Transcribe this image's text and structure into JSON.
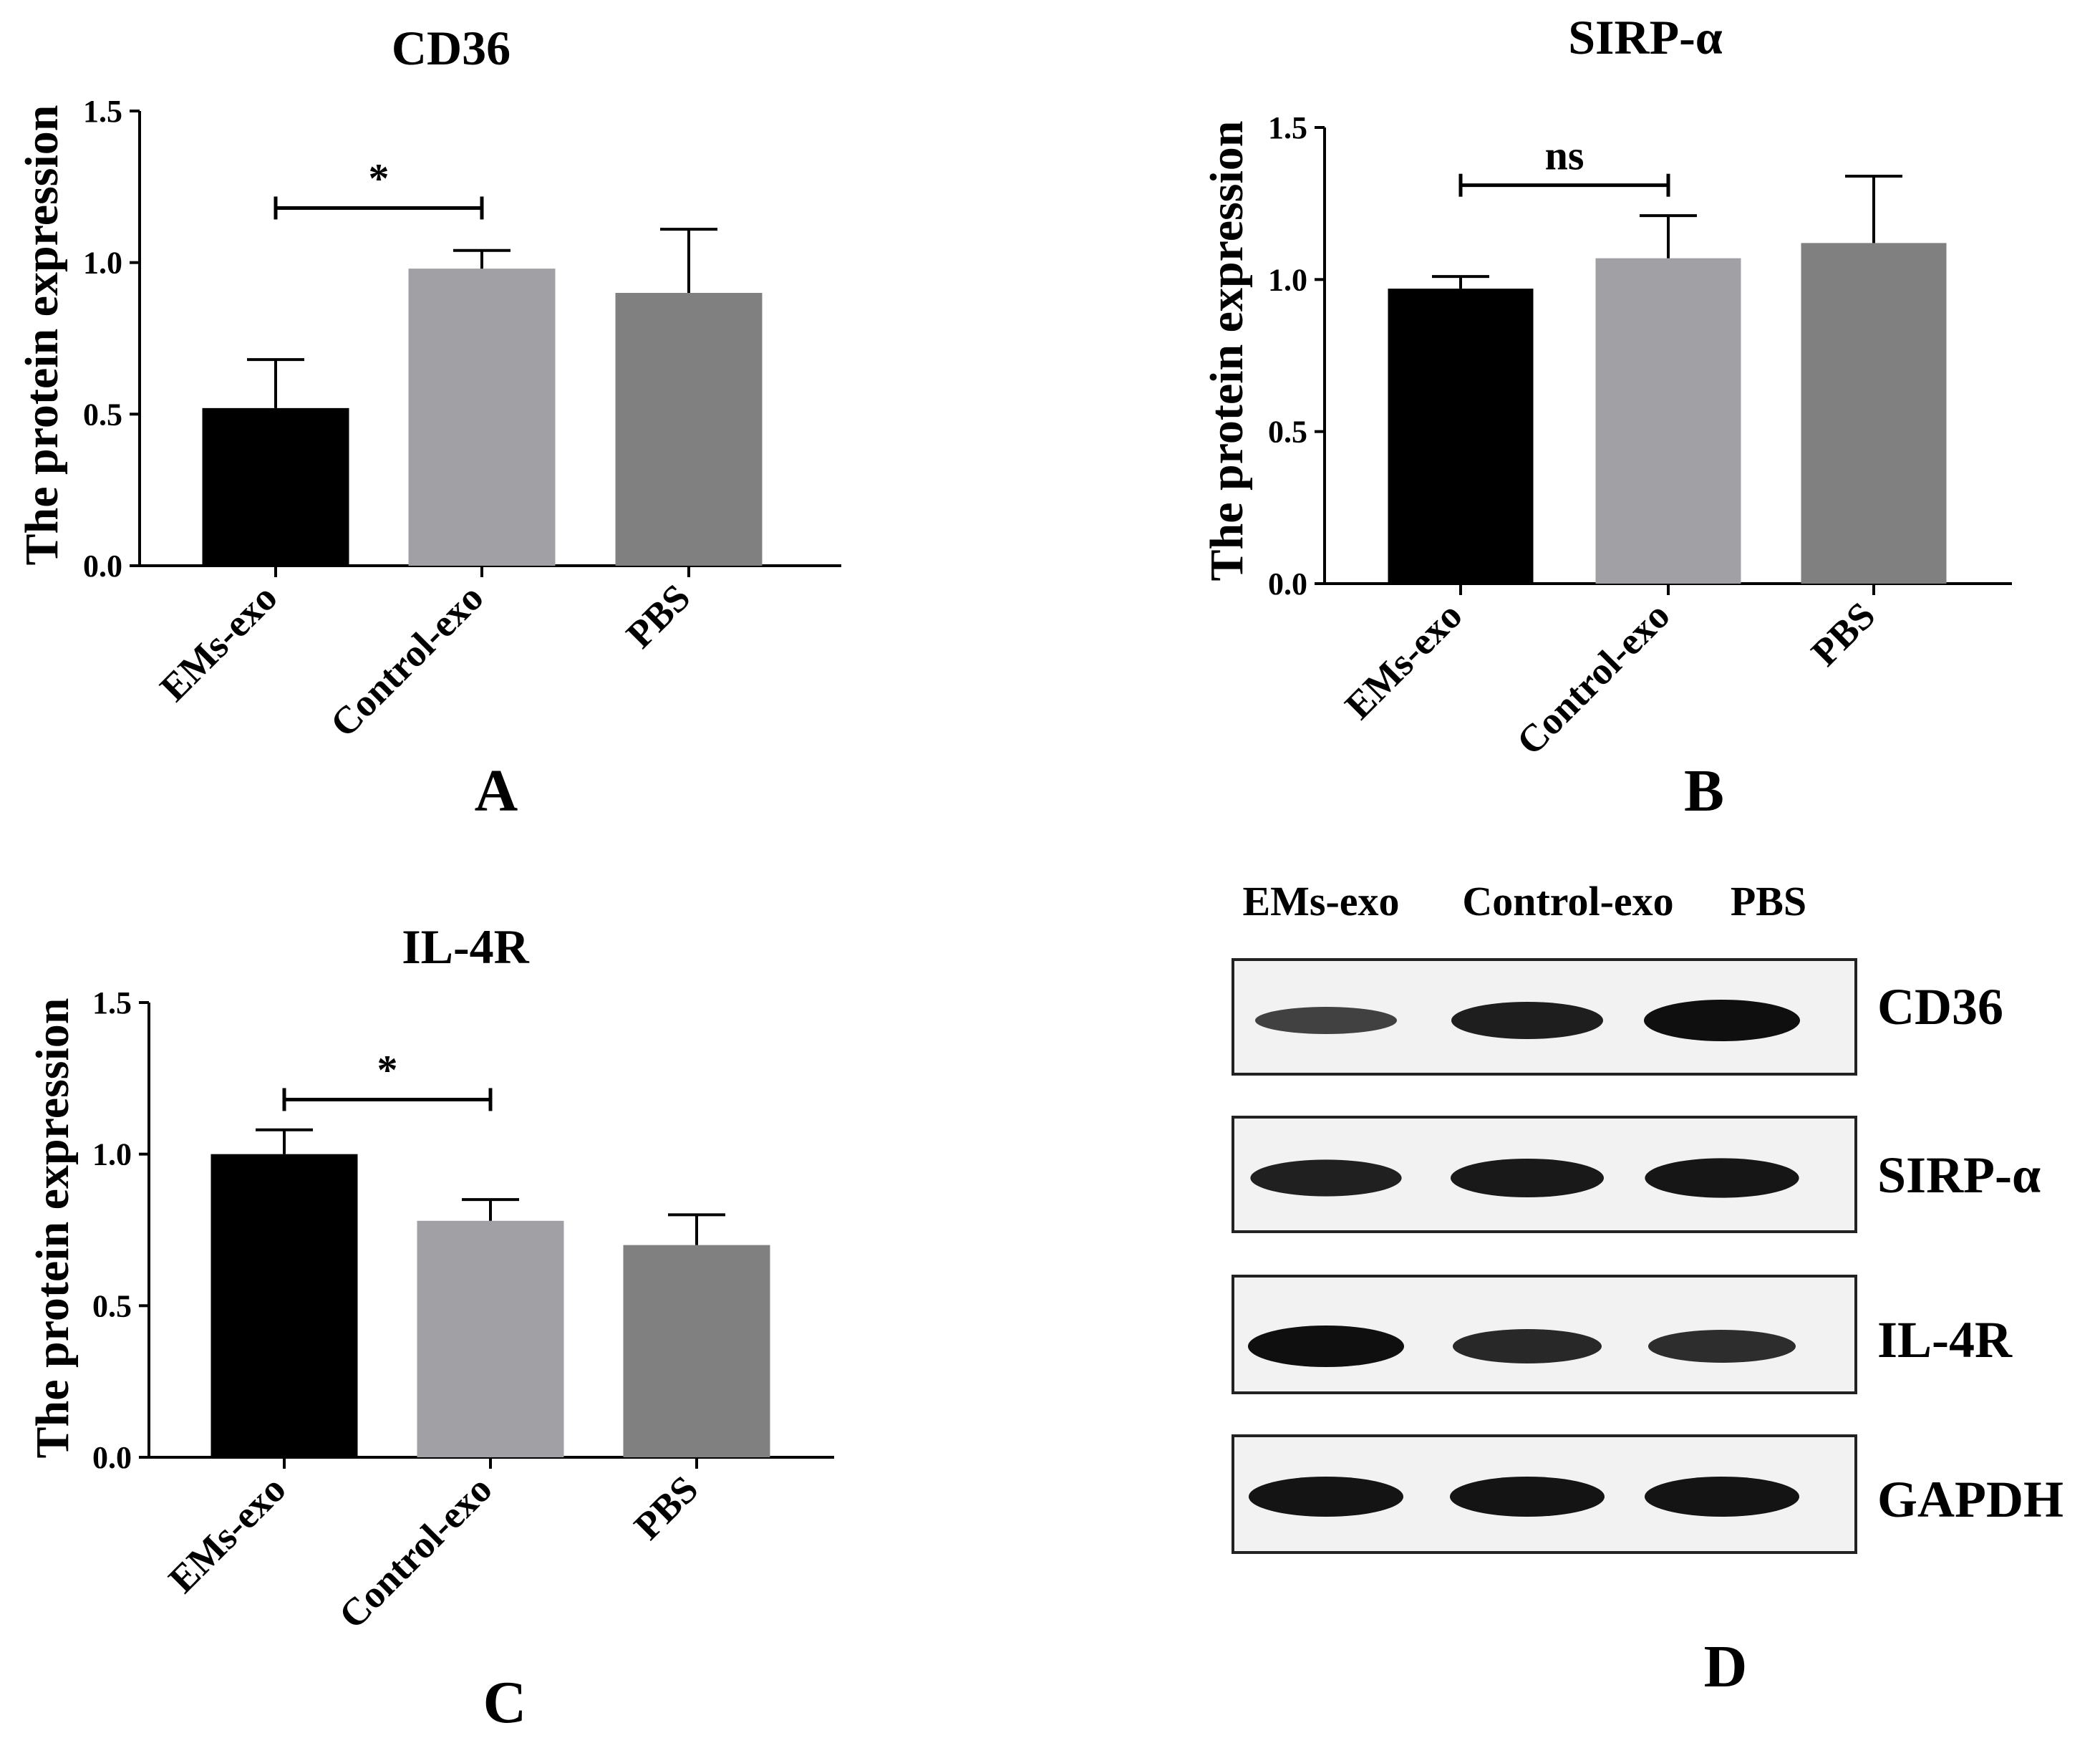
{
  "chart_data": [
    {
      "type": "bar",
      "panel_label": "A",
      "title": "CD36",
      "ylabel": "The protein expression",
      "xlabel": "",
      "categories": [
        "EMs-exo",
        "Control-exo",
        "PBS"
      ],
      "values": [
        0.52,
        0.98,
        0.9
      ],
      "error": [
        0.16,
        0.06,
        0.21
      ],
      "colors": [
        "#000000",
        "#a0a0a5",
        "#808080"
      ],
      "ylim": [
        0,
        1.5
      ],
      "yticks": [
        0.0,
        0.5,
        1.0,
        1.5
      ],
      "ytick_labels": [
        "0.0",
        "0.5",
        "1.0",
        "1.5"
      ],
      "grid": false,
      "significance": {
        "from": 0,
        "to": 1,
        "y": 1.18,
        "label": "*"
      }
    },
    {
      "type": "bar",
      "panel_label": "B",
      "title": "SIRP-α",
      "ylabel": "The protein expression",
      "xlabel": "",
      "categories": [
        "EMs-exo",
        "Control-exo",
        "PBS"
      ],
      "values": [
        0.97,
        1.07,
        1.12
      ],
      "error": [
        0.04,
        0.14,
        0.22
      ],
      "colors": [
        "#000000",
        "#a0a0a5",
        "#808080"
      ],
      "ylim": [
        0,
        1.5
      ],
      "yticks": [
        0.0,
        0.5,
        1.0,
        1.5
      ],
      "ytick_labels": [
        "0.0",
        "0.5",
        "1.0",
        "1.5"
      ],
      "grid": false,
      "significance": {
        "from": 0,
        "to": 1,
        "y": 1.31,
        "label": "ns"
      }
    },
    {
      "type": "bar",
      "panel_label": "C",
      "title": "IL-4R",
      "ylabel": "The protein expression",
      "xlabel": "",
      "categories": [
        "EMs-exo",
        "Control-exo",
        "PBS"
      ],
      "values": [
        1.0,
        0.78,
        0.7
      ],
      "error": [
        0.08,
        0.07,
        0.1
      ],
      "colors": [
        "#000000",
        "#a0a0a5",
        "#808080"
      ],
      "ylim": [
        0,
        1.5
      ],
      "yticks": [
        0.0,
        0.5,
        1.0,
        1.5
      ],
      "ytick_labels": [
        "0.0",
        "0.5",
        "1.0",
        "1.5"
      ],
      "grid": false,
      "significance": {
        "from": 0,
        "to": 1,
        "y": 1.18,
        "label": "*"
      }
    }
  ],
  "blot": {
    "panel_label": "D",
    "lane_labels": [
      "EMs-exo",
      "Control-exo",
      "PBS"
    ],
    "rows": [
      {
        "label": "CD36",
        "intensity": [
          0.45,
          0.8,
          0.95
        ]
      },
      {
        "label": "SIRP-α",
        "intensity": [
          0.78,
          0.85,
          0.88
        ]
      },
      {
        "label": "IL-4R",
        "intensity": [
          0.95,
          0.7,
          0.65
        ]
      },
      {
        "label": "GAPDH",
        "intensity": [
          0.9,
          0.9,
          0.9
        ]
      }
    ]
  }
}
